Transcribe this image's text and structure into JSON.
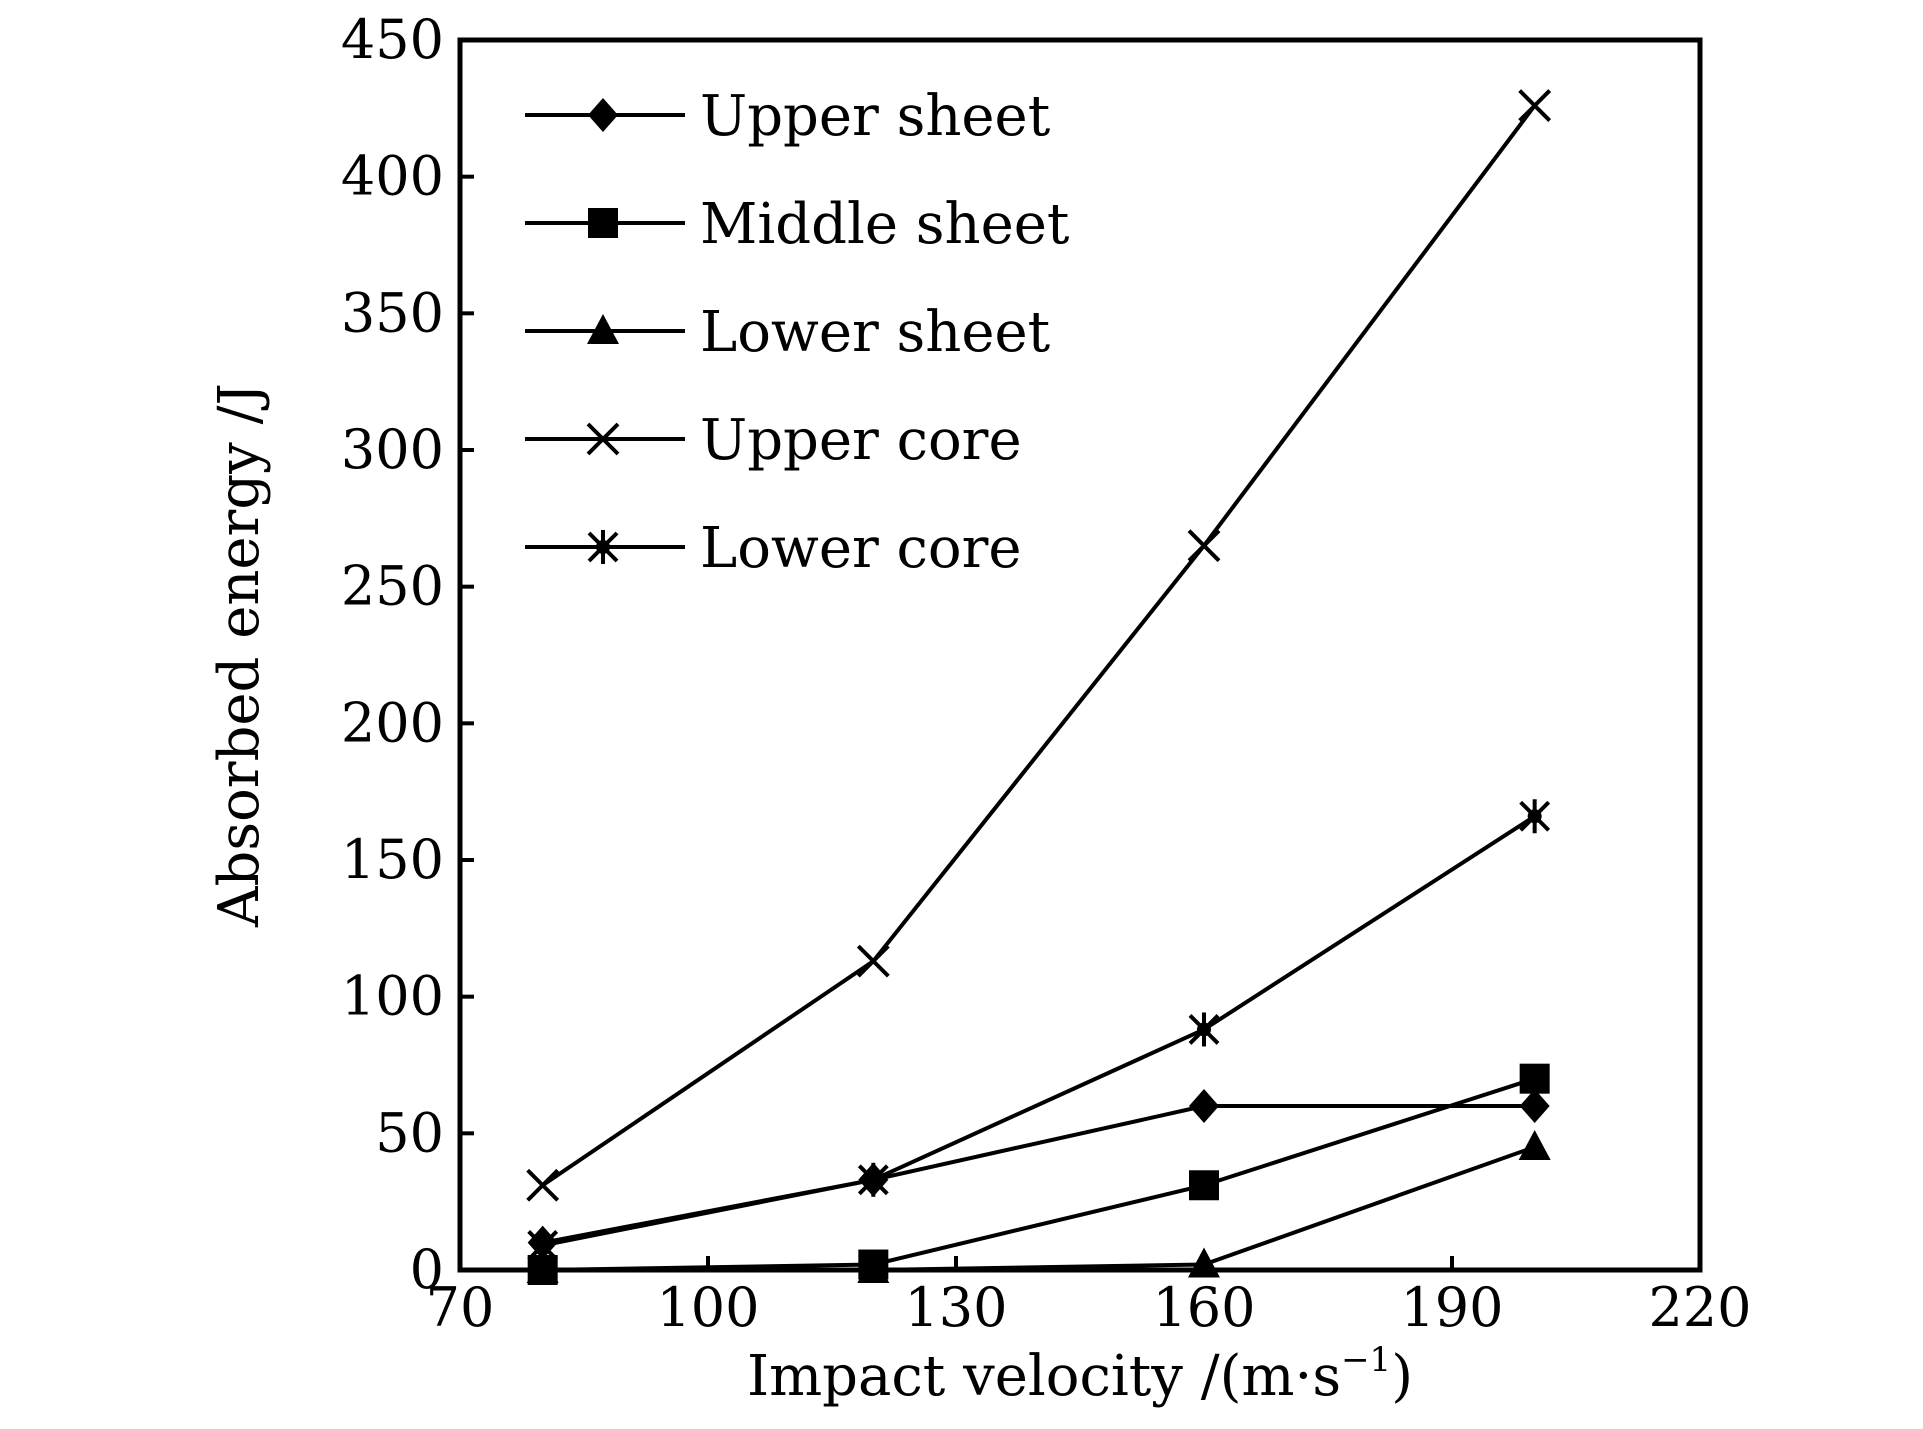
{
  "chart_data": {
    "type": "line",
    "title": "",
    "xlabel": "Impact velocity /(m·s",
    "xlabel_sup": "−1",
    "xlabel_end": ")",
    "ylabel": "Absorbed energy /J",
    "xlim": [
      70,
      220
    ],
    "ylim": [
      0,
      450
    ],
    "xticks": [
      "70",
      "100",
      "130",
      "160",
      "190",
      "220"
    ],
    "yticks": [
      "0",
      "50",
      "100",
      "150",
      "200",
      "250",
      "300",
      "350",
      "400",
      "450"
    ],
    "grid": false,
    "legend_position": "top-left",
    "x": [
      80,
      120,
      160,
      200
    ],
    "series": [
      {
        "name": "Upper sheet",
        "marker": "diamond",
        "values": [
          10,
          33,
          60,
          60
        ]
      },
      {
        "name": "Middle sheet",
        "marker": "square",
        "values": [
          0,
          2,
          31,
          70
        ]
      },
      {
        "name": "Lower sheet",
        "marker": "triangle",
        "values": [
          0,
          0,
          2,
          45
        ]
      },
      {
        "name": "Upper core",
        "marker": "x",
        "values": [
          31,
          113,
          265,
          426
        ]
      },
      {
        "name": "Lower core",
        "marker": "asterisk",
        "values": [
          9,
          33,
          88,
          166
        ]
      }
    ]
  }
}
